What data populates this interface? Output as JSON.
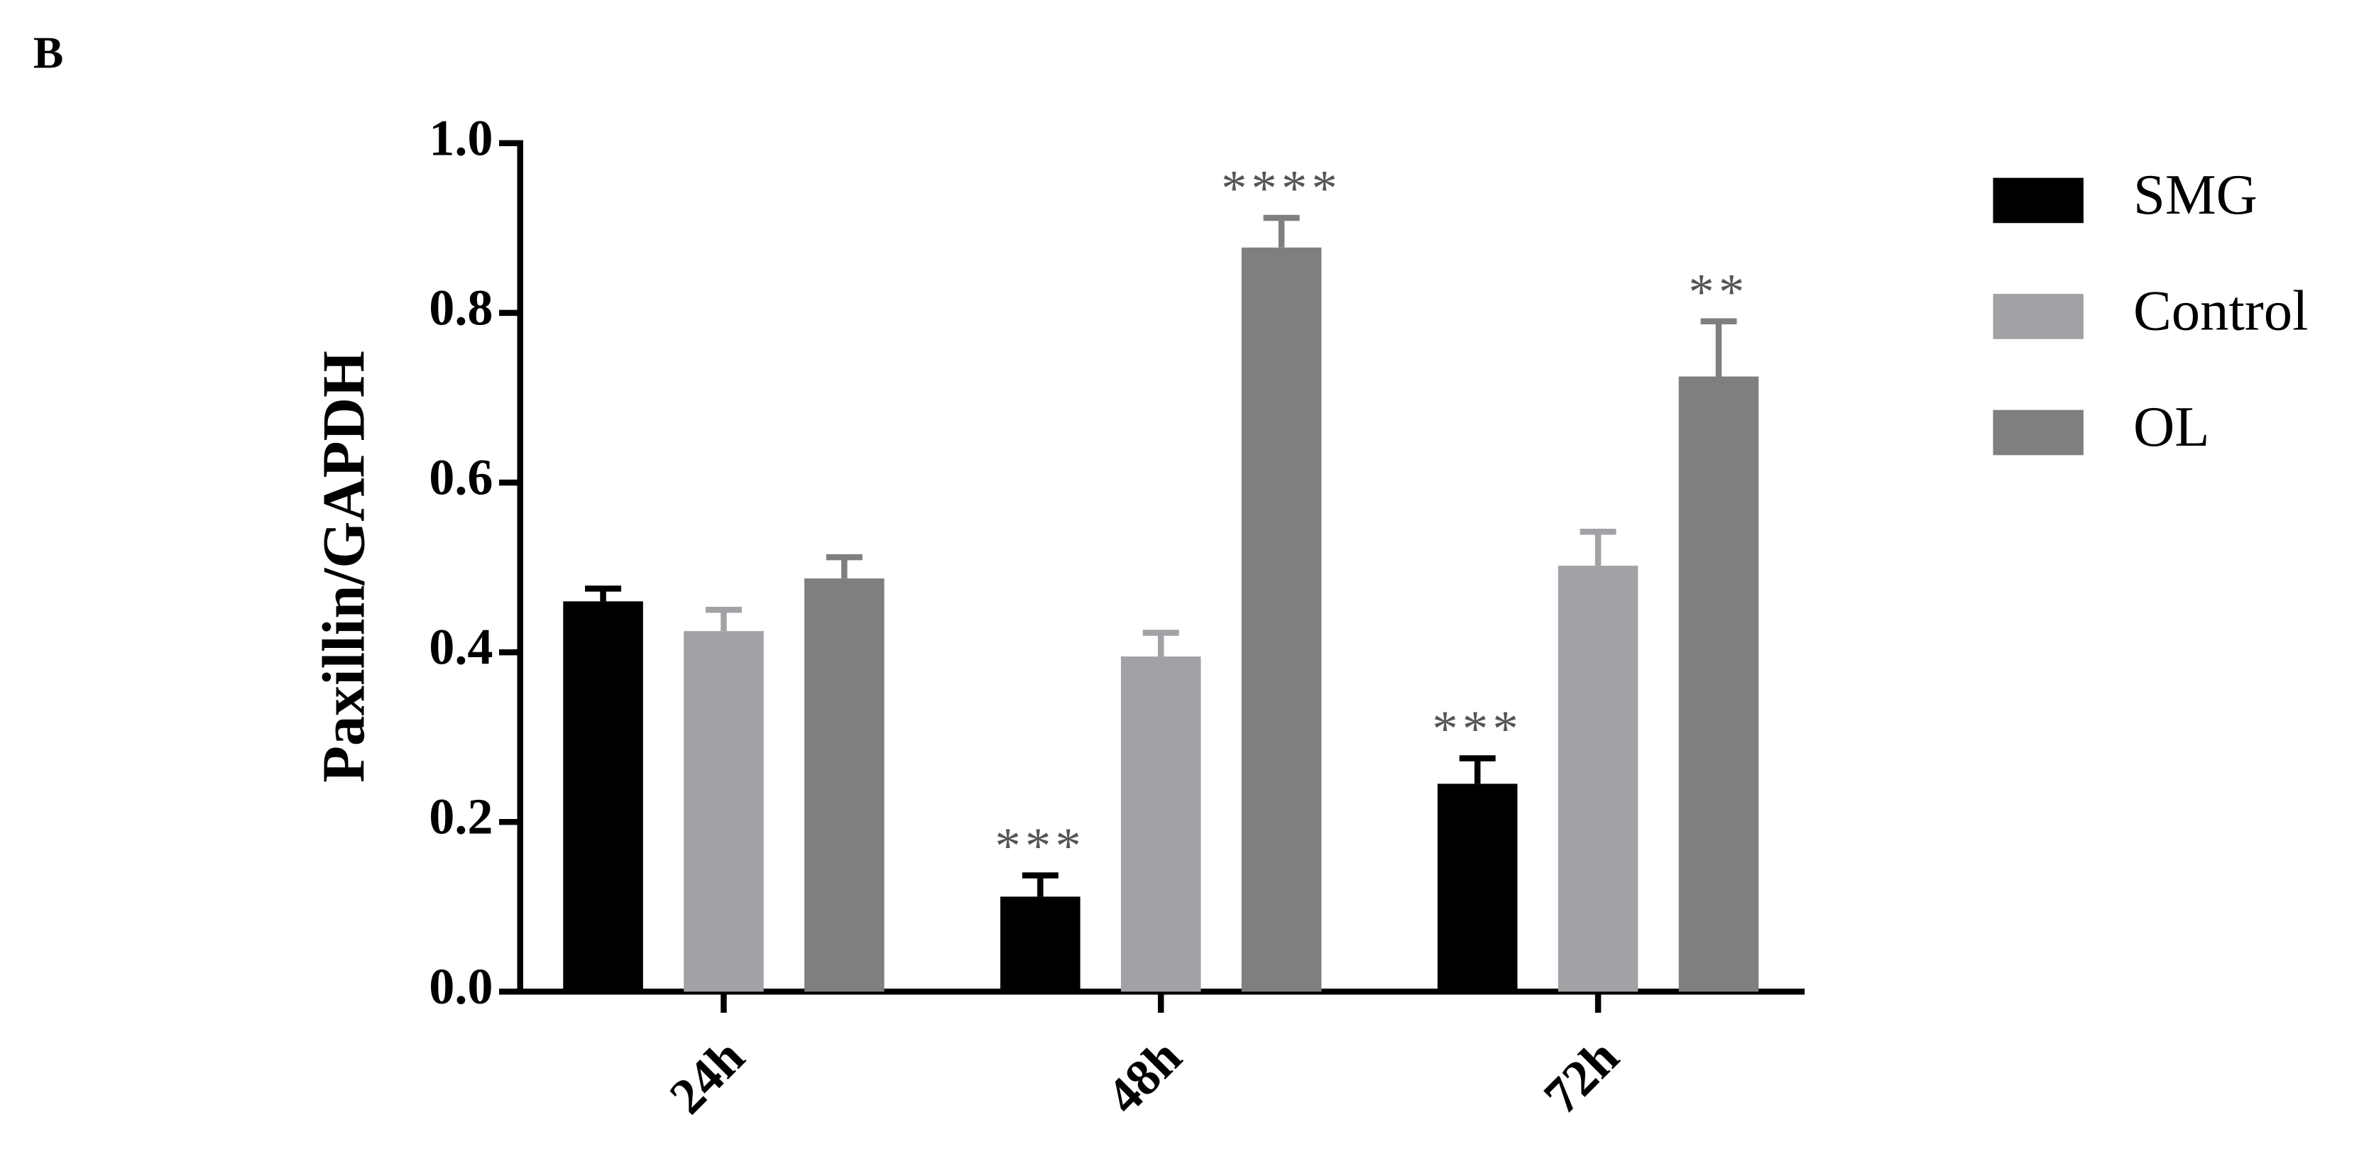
{
  "chart_data": {
    "type": "bar",
    "panel_label": "B",
    "y_label": "Paxillin/GAPDH",
    "categories": [
      "24h",
      "48h",
      "72h"
    ],
    "series": [
      {
        "name": "SMG",
        "color": "#000000",
        "values": [
          0.46,
          0.112,
          0.245
        ],
        "errors": [
          0.015,
          0.025,
          0.03
        ],
        "labels": [
          null,
          "***",
          "***"
        ]
      },
      {
        "name": "Control",
        "color": "#a2a2a6",
        "values": [
          0.425,
          0.395,
          0.502
        ],
        "errors": [
          0.025,
          0.028,
          0.04
        ],
        "labels": [
          null,
          null,
          null
        ]
      },
      {
        "name": "OL",
        "color": "#7f7f7f",
        "values": [
          0.487,
          0.877,
          0.725
        ],
        "errors": [
          0.025,
          0.035,
          0.065
        ],
        "labels": [
          null,
          "****",
          "**"
        ]
      }
    ],
    "ylim": [
      0,
      1.0
    ],
    "yticks": [
      {
        "value": 0,
        "label": "0.0"
      },
      0.2,
      0.4,
      0.6,
      0.8,
      {
        "value": 1,
        "label": "1.0"
      }
    ],
    "legend": "right"
  }
}
